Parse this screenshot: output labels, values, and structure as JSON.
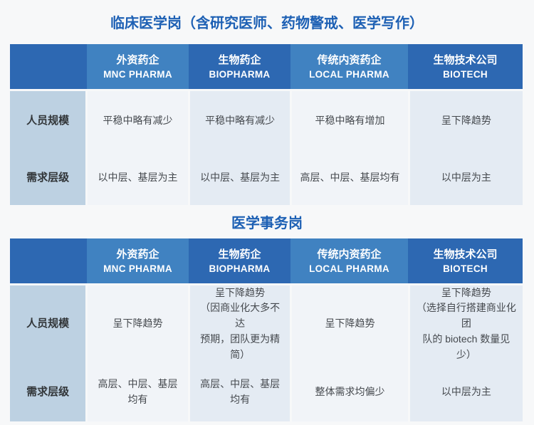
{
  "colors": {
    "header_dark_blue": "#2d68b2",
    "header_light_blue": "#4082c1",
    "row_header_bg": "#bdd1e2",
    "cell_bg_light": "#f1f4f8",
    "cell_bg_shaded": "#e4ebf3",
    "title_blue": "#1d60b4",
    "page_background": "#f7f8f9"
  },
  "tables": [
    {
      "title": "临床医学岗（含研究医师、药物警戒、医学写作）",
      "columns": [
        {
          "cn": "外资药企",
          "en": "MNC PHARMA"
        },
        {
          "cn": "生物药企",
          "en": "BIOPHARMA"
        },
        {
          "cn": "传统内资药企",
          "en": "LOCAL PHARMA"
        },
        {
          "cn": "生物技术公司",
          "en": "BIOTECH"
        }
      ],
      "rows": [
        {
          "header": "人员规模",
          "cells": [
            "平稳中略有减少",
            "平稳中略有减少",
            "平稳中略有增加",
            "呈下降趋势"
          ]
        },
        {
          "header": "需求层级",
          "cells": [
            "以中层、基层为主",
            "以中层、基层为主",
            "高层、中层、基层均有",
            "以中层为主"
          ]
        }
      ]
    },
    {
      "title": "医学事务岗",
      "columns": [
        {
          "cn": "外资药企",
          "en": "MNC PHARMA"
        },
        {
          "cn": "生物药企",
          "en": "BIOPHARMA"
        },
        {
          "cn": "传统内资药企",
          "en": "LOCAL PHARMA"
        },
        {
          "cn": "生物技术公司",
          "en": "BIOTECH"
        }
      ],
      "rows": [
        {
          "header": "人员规模",
          "cells": [
            "呈下降趋势",
            "呈下降趋势\n（因商业化大多不达\n预期，团队更为精简）",
            "呈下降趋势",
            "呈下降趋势\n（选择自行搭建商业化团\n队的 biotech 数量见少）"
          ]
        },
        {
          "header": "需求层级",
          "cells": [
            "高层、中层、基层均有",
            "高层、中层、基层均有",
            "整体需求均偏少",
            "以中层为主"
          ]
        }
      ]
    }
  ]
}
